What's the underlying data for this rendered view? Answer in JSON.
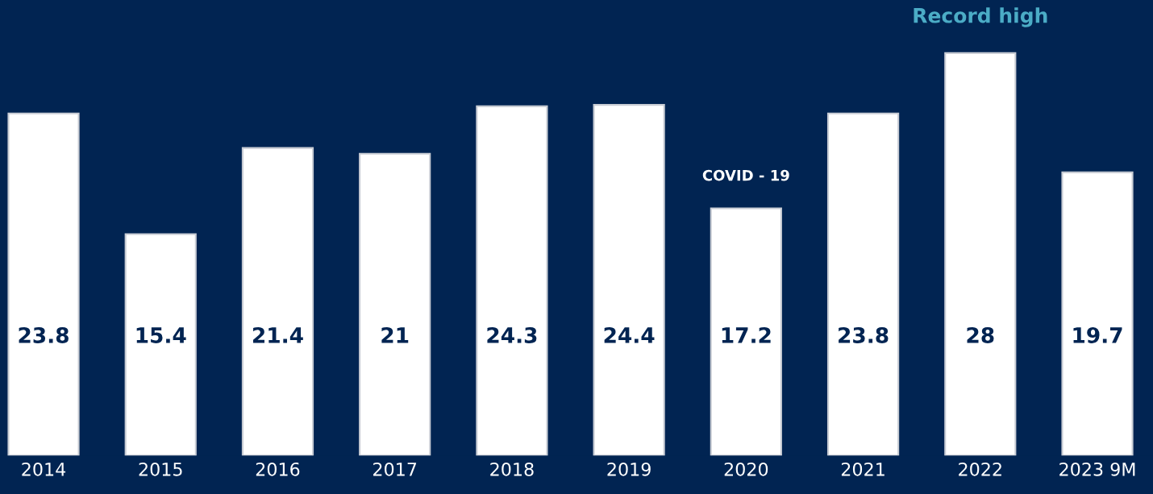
{
  "chart_data": {
    "type": "bar",
    "categories": [
      "2014",
      "2015",
      "2016",
      "2017",
      "2018",
      "2019",
      "2020",
      "2021",
      "2022",
      "2023 9M"
    ],
    "values": [
      23.8,
      15.4,
      21.4,
      21,
      24.3,
      24.4,
      17.2,
      23.8,
      28,
      19.7
    ],
    "color": "#ffffff",
    "data_labels": true,
    "tick_labels": "x",
    "grid": false,
    "legend": false,
    "annotations": [
      {
        "text": "COVID - 19",
        "x": "2020",
        "y": 17.2
      },
      {
        "text": "Record high",
        "x": "2022",
        "y": 28
      }
    ]
  }
}
